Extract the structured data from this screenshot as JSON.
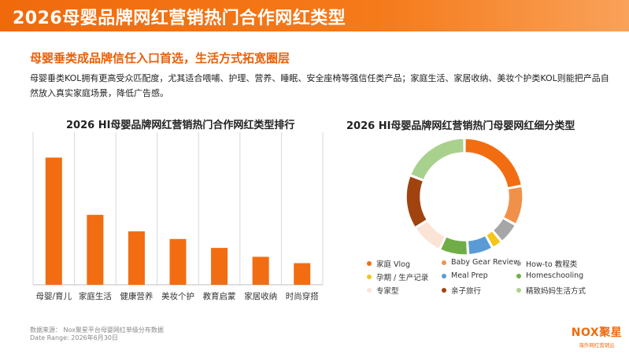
{
  "header": {
    "title": "2026母婴品牌网红营销热门合作网红类型"
  },
  "main": {
    "headline": "母婴垂类成品牌信任入口首选，生活方式拓宽圈层",
    "description": "母婴垂类KOL拥有更高受众匹配度，尤其适合喂哺、护理、营养、睡眠、安全座椅等强信任类产品；家庭生活、家居收纳、美妆个护类KOL则能把产品自然放入真实家庭场景，降低广告感。"
  },
  "colors": {
    "accent": "#f06a0c",
    "bar": "#f26d12"
  },
  "chart_data": [
    {
      "type": "bar",
      "title": "2026 HI母婴品牌网红营销热门合作网红类型排行",
      "categories": [
        "母婴/育儿",
        "家庭生活",
        "健康营养",
        "美妆个护",
        "教育启蒙",
        "家居收纳",
        "时尚穿搭"
      ],
      "values": [
        100,
        55,
        42,
        36,
        29,
        22,
        17
      ],
      "xlabel": "",
      "ylabel": "",
      "ylim": [
        0,
        120
      ],
      "grid": "vertical separators"
    },
    {
      "type": "pie",
      "title": "2026 HI母婴品牌网红营销热门母婴网红细分类型",
      "labels": [
        "家庭 Vlog",
        "Baby Gear Review",
        "How-to 教程类",
        "孕期 / 生产记录",
        "Meal Prep",
        "Homeschooling",
        "专家型",
        "亲子旅行",
        "精致妈妈生活方式"
      ],
      "values": [
        22,
        11,
        6,
        3,
        7,
        8,
        9,
        15,
        19
      ],
      "colors": [
        "#f26d12",
        "#f0914a",
        "#a6a6a6",
        "#f5c518",
        "#5b9bd5",
        "#70ad47",
        "#fbe3d6",
        "#a0430f",
        "#a9d18e"
      ],
      "legend_position": "bottom"
    }
  ],
  "footer": {
    "source": "数据来源：    Nox聚星平台母婴网红单级分布数据",
    "date": "Date Range:    2026年6月30日"
  },
  "logo": {
    "main": "NOX聚星",
    "sub": "海外网红营销云"
  }
}
